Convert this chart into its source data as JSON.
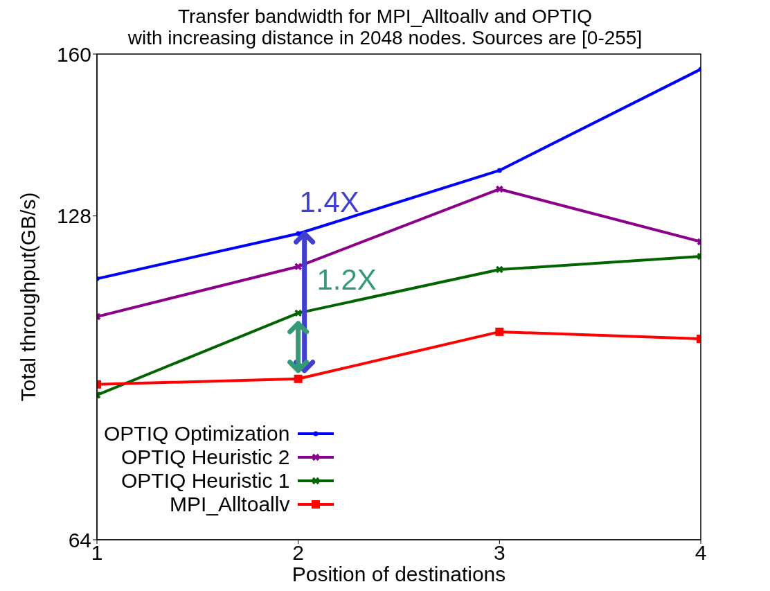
{
  "chart_data": {
    "type": "line",
    "title": "Transfer bandwidth for MPI_Alltoallv and OPTIQ\nwith increasing distance in 2048 nodes. Sources are [0-255]",
    "xlabel": "Position of destinations",
    "ylabel": "Total throughput(GB/s)",
    "x": [
      1,
      2,
      3,
      4
    ],
    "xlim": [
      1,
      4
    ],
    "xticks": [
      1,
      2,
      3,
      4
    ],
    "ylim": [
      64,
      160
    ],
    "yticks": [
      64,
      128,
      160
    ],
    "series": [
      {
        "name": "OPTIQ Optimization",
        "color": "#0000ff",
        "marker": "circle",
        "values": [
          115.6,
          124.5,
          137,
          157
        ]
      },
      {
        "name": "OPTIQ Heuristic 2",
        "color": "#8b008b",
        "marker": "cross",
        "values": [
          108.1,
          118,
          133.3,
          122.9
        ]
      },
      {
        "name": "OPTIQ Heuristic 1",
        "color": "#006400",
        "marker": "cross",
        "values": [
          92.6,
          108.8,
          117.4,
          120
        ]
      },
      {
        "name": "MPI_Alltoallv",
        "color": "#ff0000",
        "marker": "square",
        "values": [
          94.7,
          95.8,
          105.1,
          103.7
        ]
      }
    ],
    "annotations": [
      "1.4X",
      "1.2X"
    ],
    "legend": "bottom left",
    "grid": false
  }
}
